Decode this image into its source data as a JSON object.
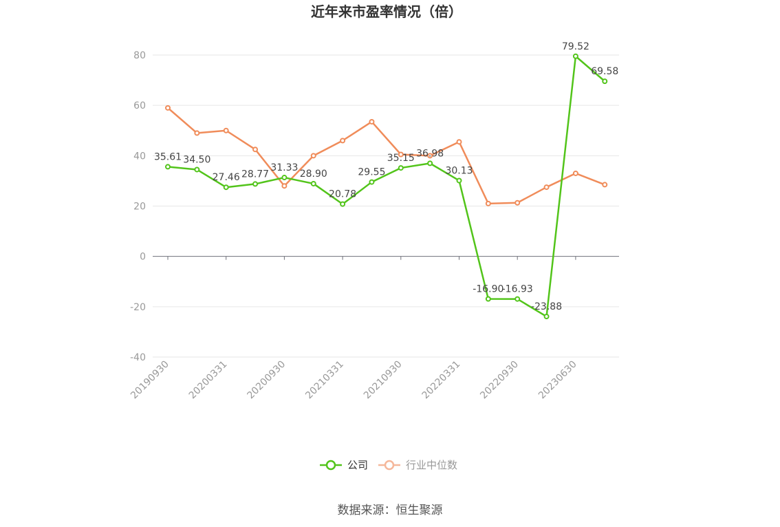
{
  "chart_data": {
    "type": "line",
    "title": "近年来市盈率情况（倍）",
    "ylim": [
      -40,
      80
    ],
    "y_ticks": [
      80,
      60,
      40,
      20,
      0,
      -20,
      -40
    ],
    "x_tick_labels": [
      "20190930",
      "20200331",
      "20200930",
      "20210331",
      "20210930",
      "20220331",
      "20220930",
      "20230630"
    ],
    "grid": true,
    "legend_position": "bottom-center",
    "series": [
      {
        "name": "公司",
        "color": "#52c41a",
        "values": [
          35.61,
          34.5,
          27.46,
          28.77,
          31.33,
          28.9,
          20.78,
          29.55,
          35.15,
          36.98,
          30.13,
          -16.9,
          -16.93,
          -23.88,
          79.52,
          69.58
        ],
        "labels": [
          "35.61",
          "34.50",
          "27.46",
          "28.77",
          "31.33",
          "28.90",
          "20.78",
          "29.55",
          "35.15",
          "36.98",
          "30.13",
          "-16.90",
          "-16.93",
          "-23.88",
          "79.52",
          "69.58"
        ]
      },
      {
        "name": "行业中位数",
        "color": "#f08c5a",
        "values": [
          59.0,
          49.0,
          50.0,
          42.5,
          28.0,
          40.0,
          46.0,
          53.5,
          40.5,
          40.0,
          45.5,
          21.0,
          21.3,
          27.5,
          33.0,
          28.5
        ]
      }
    ]
  },
  "source": "数据来源：恒生聚源"
}
